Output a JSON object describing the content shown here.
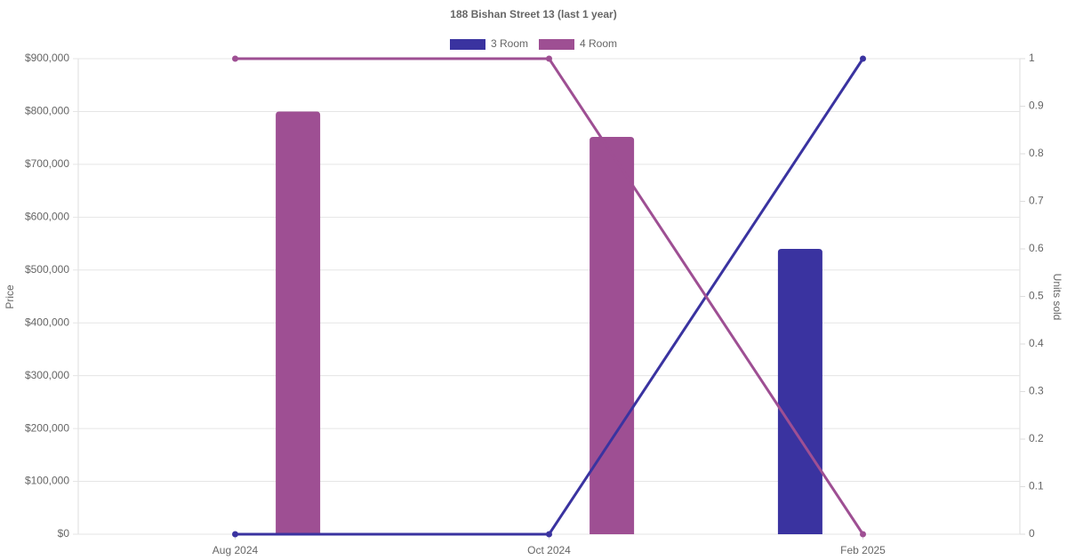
{
  "chart_data": {
    "type": "bar",
    "title": "188 Bishan Street 13 (last 1 year)",
    "categories": [
      "Aug 2024",
      "Oct 2024",
      "Feb 2025"
    ],
    "series": [
      {
        "name": "3 Room",
        "color": "#3a33a0",
        "values": [
          null,
          null,
          540000
        ],
        "units": [
          0,
          0,
          1
        ]
      },
      {
        "name": "4 Room",
        "color": "#9e4f93",
        "values": [
          800000,
          752000,
          null
        ],
        "units": [
          1,
          1,
          0
        ]
      }
    ],
    "y_label": "Price",
    "y2_label": "Units sold",
    "ylim": [
      0,
      900000
    ],
    "yticks": [
      {
        "value": 0,
        "label": "$0"
      },
      {
        "value": 100000,
        "label": "$100,000"
      },
      {
        "value": 200000,
        "label": "$200,000"
      },
      {
        "value": 300000,
        "label": "$300,000"
      },
      {
        "value": 400000,
        "label": "$400,000"
      },
      {
        "value": 500000,
        "label": "$500,000"
      },
      {
        "value": 600000,
        "label": "$600,000"
      },
      {
        "value": 700000,
        "label": "$700,000"
      },
      {
        "value": 800000,
        "label": "$800,000"
      },
      {
        "value": 900000,
        "label": "$900,000"
      }
    ],
    "y2lim": [
      0,
      1
    ],
    "y2ticks": [
      0,
      0.1,
      0.2,
      0.3,
      0.4,
      0.5,
      0.6,
      0.7,
      0.8,
      0.9,
      1
    ],
    "grid": true
  }
}
